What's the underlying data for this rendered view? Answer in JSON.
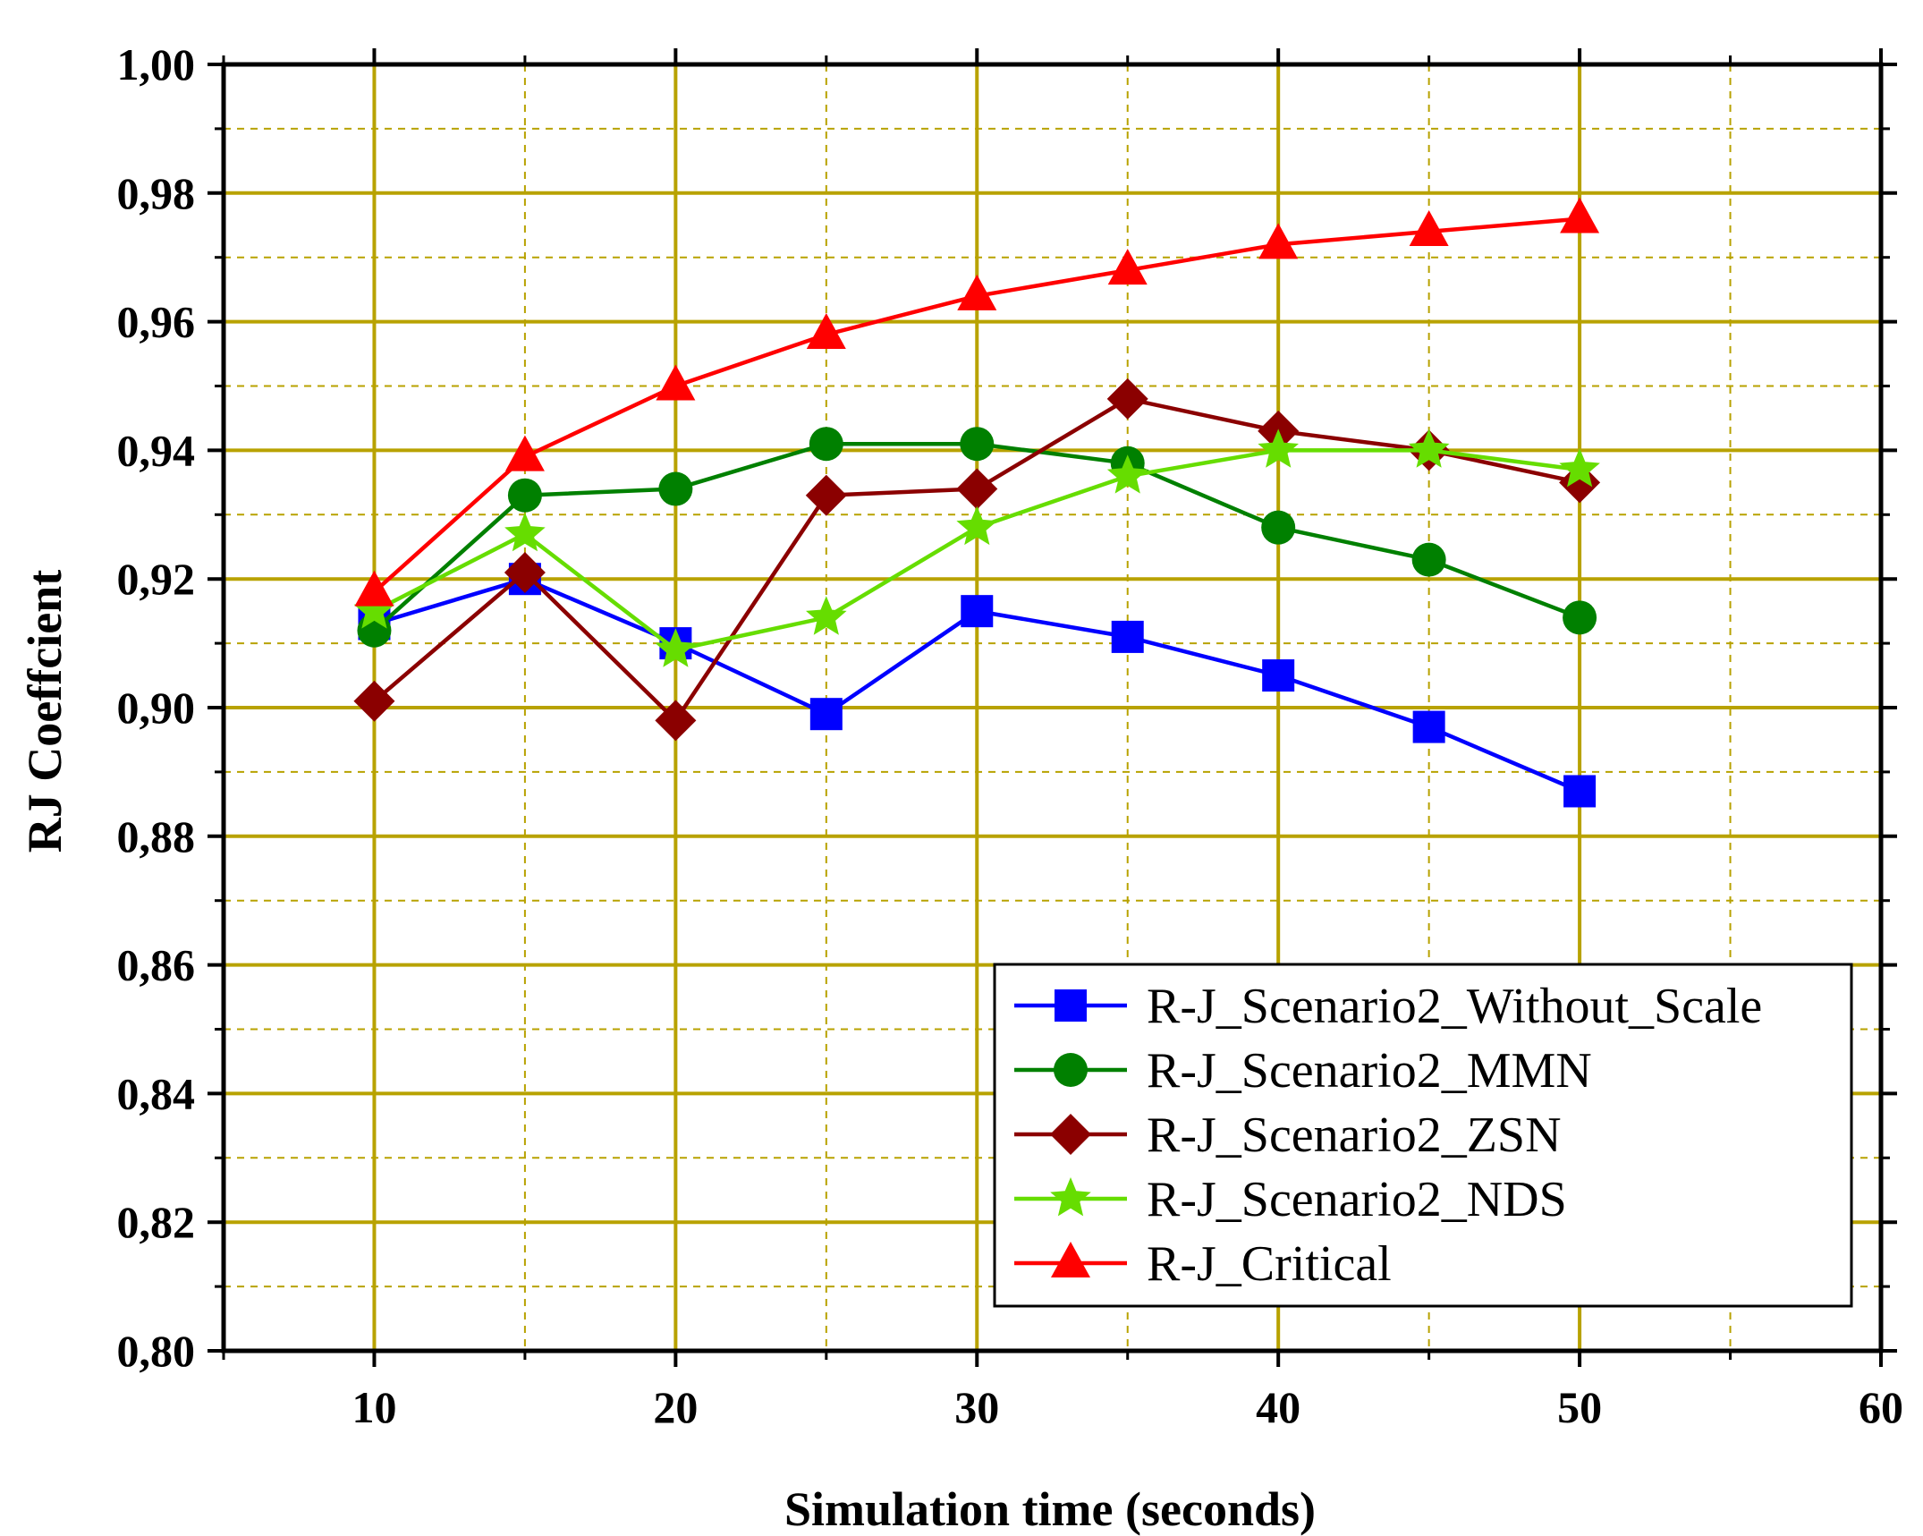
{
  "chart_data": {
    "type": "line",
    "title": "",
    "xlabel": "Simulation time (seconds)",
    "ylabel": "RJ Coeffcient",
    "xlim": [
      5,
      60
    ],
    "ylim": [
      0.8,
      1.0
    ],
    "x_ticks": [
      10,
      20,
      30,
      40,
      50,
      60
    ],
    "x_tick_labels": [
      "10",
      "20",
      "30",
      "40",
      "50",
      "60"
    ],
    "y_ticks": [
      0.8,
      0.82,
      0.84,
      0.86,
      0.88,
      0.9,
      0.92,
      0.94,
      0.96,
      0.98,
      1.0
    ],
    "y_tick_labels": [
      "0,80",
      "0,82",
      "0,84",
      "0,86",
      "0,88",
      "0,90",
      "0,92",
      "0,94",
      "0,96",
      "0,98",
      "1,00"
    ],
    "grid": true,
    "legend_position": "bottom-right",
    "x": [
      10,
      15,
      20,
      25,
      30,
      35,
      40,
      45,
      50
    ],
    "series": [
      {
        "name": "R-J_Scenario2_Without_Scale",
        "color": "#0000ff",
        "marker": "square",
        "values": [
          0.913,
          0.92,
          0.91,
          0.899,
          0.915,
          0.911,
          0.905,
          0.897,
          0.887
        ]
      },
      {
        "name": "R-J_Scenario2_MMN",
        "color": "#008000",
        "marker": "circle",
        "values": [
          0.912,
          0.933,
          0.934,
          0.941,
          0.941,
          0.938,
          0.928,
          0.923,
          0.914
        ]
      },
      {
        "name": "R-J_Scenario2_ZSN",
        "color": "#8b0000",
        "marker": "diamond",
        "values": [
          0.901,
          0.921,
          0.898,
          0.933,
          0.934,
          0.948,
          0.943,
          0.94,
          0.935
        ]
      },
      {
        "name": "R-J_Scenario2_NDS",
        "color": "#66dd00",
        "marker": "star",
        "values": [
          0.915,
          0.927,
          0.909,
          0.914,
          0.928,
          0.936,
          0.94,
          0.94,
          0.937
        ]
      },
      {
        "name": "R-J_Critical",
        "color": "#ff0000",
        "marker": "triangle",
        "values": [
          0.918,
          0.939,
          0.95,
          0.958,
          0.964,
          0.968,
          0.972,
          0.974,
          0.976
        ]
      }
    ]
  },
  "colors": {
    "grid": "#b8a200",
    "axis": "#000000"
  }
}
